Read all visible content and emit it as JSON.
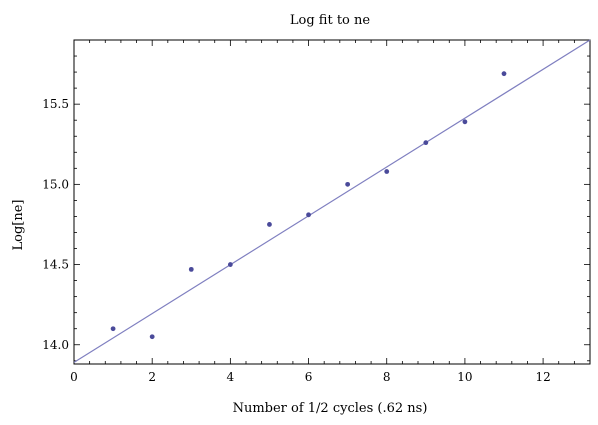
{
  "chart_data": {
    "type": "scatter",
    "title": "Log fit to ne",
    "xlabel": "Number of 1/2 cycles (.62 ns)",
    "ylabel": "Log[ne]",
    "xlim": [
      0,
      13.2
    ],
    "ylim": [
      13.88,
      15.9
    ],
    "x_ticks": [
      0,
      2,
      4,
      6,
      8,
      10,
      12
    ],
    "y_ticks": [
      14.0,
      14.5,
      15.0,
      15.5
    ],
    "x_tick_labels": [
      "0",
      "2",
      "4",
      "6",
      "8",
      "10",
      "12"
    ],
    "y_tick_labels": [
      "14.0",
      "14.5",
      "15.0",
      "15.5"
    ],
    "grid": false,
    "series": [
      {
        "points": [
          {
            "x": 1,
            "y": 14.1
          },
          {
            "x": 2,
            "y": 14.05
          },
          {
            "x": 3,
            "y": 14.47
          },
          {
            "x": 4,
            "y": 14.5
          },
          {
            "x": 5,
            "y": 14.75
          },
          {
            "x": 6,
            "y": 14.81
          },
          {
            "x": 7,
            "y": 15.0
          },
          {
            "x": 8,
            "y": 15.08
          },
          {
            "x": 9,
            "y": 15.26
          },
          {
            "x": 10,
            "y": 15.39
          },
          {
            "x": 11,
            "y": 15.69
          }
        ]
      }
    ],
    "fit_line": {
      "x0": 0,
      "y0": 13.89,
      "x1": 13.2,
      "y1": 15.9
    },
    "colors": {
      "points": "#4a4a9a",
      "line": "#7f7fc0",
      "frame": "#000000"
    }
  }
}
